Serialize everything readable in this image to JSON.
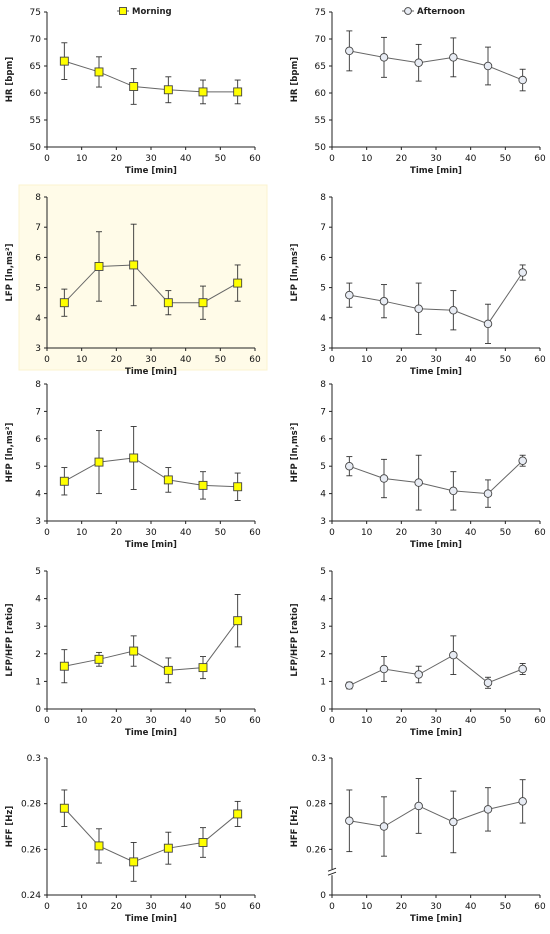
{
  "colors": {
    "morning_fill": "#ffff00",
    "afternoon_fill": "#e8ecf4",
    "marker_stroke": "#444444",
    "line": "#666666",
    "highlight_bg": "#fffbe8"
  },
  "chart_data": [
    {
      "id": "hr-morning",
      "type": "line",
      "ylabel": "HR [bpm]",
      "xlabel": "Time [min]",
      "ylim": [
        50,
        75
      ],
      "yticks": [
        50,
        55,
        60,
        65,
        70,
        75
      ],
      "xlim": [
        0,
        60
      ],
      "xticks": [
        0,
        10,
        20,
        30,
        40,
        50,
        60
      ],
      "legend": "top-center",
      "series": [
        {
          "name": "Morning",
          "marker": "square",
          "x": [
            5,
            15,
            25,
            35,
            45,
            55
          ],
          "y": [
            65.9,
            63.9,
            61.2,
            60.6,
            60.2,
            60.2
          ],
          "err": [
            3.4,
            2.8,
            3.3,
            2.4,
            2.2,
            2.2
          ]
        }
      ]
    },
    {
      "id": "hr-afternoon",
      "type": "line",
      "ylabel": "HR [bpm]",
      "xlabel": "Time [min]",
      "ylim": [
        50,
        75
      ],
      "yticks": [
        50,
        55,
        60,
        65,
        70,
        75
      ],
      "xlim": [
        0,
        60
      ],
      "xticks": [
        0,
        10,
        20,
        30,
        40,
        50,
        60
      ],
      "legend": "top-center",
      "series": [
        {
          "name": "Afternoon",
          "marker": "circle",
          "x": [
            5,
            15,
            25,
            35,
            45,
            55
          ],
          "y": [
            67.8,
            66.6,
            65.6,
            66.6,
            65.0,
            62.4
          ],
          "err": [
            3.7,
            3.7,
            3.4,
            3.6,
            3.5,
            2.0
          ]
        }
      ]
    },
    {
      "id": "lfp-morning",
      "type": "line",
      "ylabel": "LFP [ln,ms²]",
      "xlabel": "Time [min]",
      "ylim": [
        3,
        8
      ],
      "yticks": [
        3,
        4,
        5,
        6,
        7,
        8
      ],
      "xlim": [
        0,
        60
      ],
      "xticks": [
        0,
        10,
        20,
        30,
        40,
        50,
        60
      ],
      "highlight": true,
      "series": [
        {
          "marker": "square",
          "x": [
            5,
            15,
            25,
            35,
            45,
            55
          ],
          "y": [
            4.5,
            5.7,
            5.75,
            4.5,
            4.5,
            5.15
          ],
          "err": [
            0.45,
            1.15,
            1.35,
            0.4,
            0.55,
            0.6
          ]
        }
      ]
    },
    {
      "id": "lfp-afternoon",
      "type": "line",
      "ylabel": "LFP [ln,ms²]",
      "xlabel": "Time [min]",
      "ylim": [
        3,
        8
      ],
      "yticks": [
        3,
        4,
        5,
        6,
        7,
        8
      ],
      "xlim": [
        0,
        60
      ],
      "xticks": [
        0,
        10,
        20,
        30,
        40,
        50,
        60
      ],
      "series": [
        {
          "marker": "circle",
          "x": [
            5,
            15,
            25,
            35,
            45,
            55
          ],
          "y": [
            4.75,
            4.55,
            4.3,
            4.25,
            3.8,
            5.5
          ],
          "err": [
            0.4,
            0.55,
            0.85,
            0.65,
            0.65,
            0.25
          ]
        }
      ]
    },
    {
      "id": "hfp-morning",
      "type": "line",
      "ylabel": "HFP [ln,ms²]",
      "xlabel": "Time [min]",
      "ylim": [
        3,
        8
      ],
      "yticks": [
        3,
        4,
        5,
        6,
        7,
        8
      ],
      "xlim": [
        0,
        60
      ],
      "xticks": [
        0,
        10,
        20,
        30,
        40,
        50,
        60
      ],
      "series": [
        {
          "marker": "square",
          "x": [
            5,
            15,
            25,
            35,
            45,
            55
          ],
          "y": [
            4.45,
            5.15,
            5.3,
            4.5,
            4.3,
            4.25
          ],
          "err": [
            0.5,
            1.15,
            1.15,
            0.45,
            0.5,
            0.5
          ]
        }
      ]
    },
    {
      "id": "hfp-afternoon",
      "type": "line",
      "ylabel": "HFP [ln,ms²]",
      "xlabel": "Time [min]",
      "ylim": [
        3,
        8
      ],
      "yticks": [
        3,
        4,
        5,
        6,
        7,
        8
      ],
      "xlim": [
        0,
        60
      ],
      "xticks": [
        0,
        10,
        20,
        30,
        40,
        50,
        60
      ],
      "series": [
        {
          "marker": "circle",
          "x": [
            5,
            15,
            25,
            35,
            45,
            55
          ],
          "y": [
            5.0,
            4.55,
            4.4,
            4.1,
            4.0,
            5.2
          ],
          "err": [
            0.35,
            0.7,
            1.0,
            0.7,
            0.5,
            0.2
          ]
        }
      ]
    },
    {
      "id": "ratio-morning",
      "type": "line",
      "ylabel": "LFP/HFP [ratio]",
      "xlabel": "Time [min]",
      "ylim": [
        0,
        5
      ],
      "yticks": [
        0,
        1,
        2,
        3,
        4,
        5
      ],
      "xlim": [
        0,
        60
      ],
      "xticks": [
        0,
        10,
        20,
        30,
        40,
        50,
        60
      ],
      "series": [
        {
          "marker": "square",
          "x": [
            5,
            15,
            25,
            35,
            45,
            55
          ],
          "y": [
            1.55,
            1.8,
            2.1,
            1.4,
            1.5,
            3.2
          ],
          "err": [
            0.6,
            0.25,
            0.55,
            0.45,
            0.4,
            0.95
          ]
        }
      ]
    },
    {
      "id": "ratio-afternoon",
      "type": "line",
      "ylabel": "LFP/HFP [ratio]",
      "xlabel": "Time [min]",
      "ylim": [
        0,
        5
      ],
      "yticks": [
        0,
        1,
        2,
        3,
        4,
        5
      ],
      "xlim": [
        0,
        60
      ],
      "xticks": [
        0,
        10,
        20,
        30,
        40,
        50,
        60
      ],
      "series": [
        {
          "marker": "circle",
          "x": [
            5,
            15,
            25,
            35,
            45,
            55
          ],
          "y": [
            0.85,
            1.45,
            1.25,
            1.95,
            0.95,
            1.45
          ],
          "err": [
            0.12,
            0.45,
            0.3,
            0.7,
            0.2,
            0.2
          ]
        }
      ]
    },
    {
      "id": "hff-morning",
      "type": "line",
      "ylabel": "HFF [Hz]",
      "xlabel": "Time [min]",
      "ylim": [
        0.24,
        0.3
      ],
      "yticks": [
        0.24,
        0.26,
        0.28,
        0.3
      ],
      "ytickLabels": [
        "0.24",
        "0.26",
        "0.28",
        "0.3"
      ],
      "xlim": [
        0,
        60
      ],
      "xticks": [
        0,
        10,
        20,
        30,
        40,
        50,
        60
      ],
      "series": [
        {
          "marker": "square",
          "x": [
            5,
            15,
            25,
            35,
            45,
            55
          ],
          "y": [
            0.278,
            0.2615,
            0.2545,
            0.2605,
            0.263,
            0.2755
          ],
          "err": [
            0.008,
            0.0075,
            0.0085,
            0.007,
            0.0065,
            0.0055
          ]
        }
      ]
    },
    {
      "id": "hff-afternoon",
      "type": "line",
      "ylabel": "HFF [Hz]",
      "xlabel": "Time [min]",
      "ylim": [
        0,
        0.3
      ],
      "yticks": [
        0,
        0.26,
        0.28,
        0.3
      ],
      "ytickLabels": [
        "0",
        "0.26",
        "0.28",
        "0.3"
      ],
      "axisBreak": true,
      "xlim": [
        0,
        60
      ],
      "xticks": [
        0,
        10,
        20,
        30,
        40,
        50,
        60
      ],
      "series": [
        {
          "marker": "circle",
          "x": [
            5,
            15,
            25,
            35,
            45,
            55
          ],
          "y": [
            0.2725,
            0.27,
            0.279,
            0.272,
            0.2775,
            0.281
          ],
          "err": [
            0.0135,
            0.013,
            0.012,
            0.0135,
            0.0095,
            0.0095
          ]
        }
      ]
    }
  ]
}
